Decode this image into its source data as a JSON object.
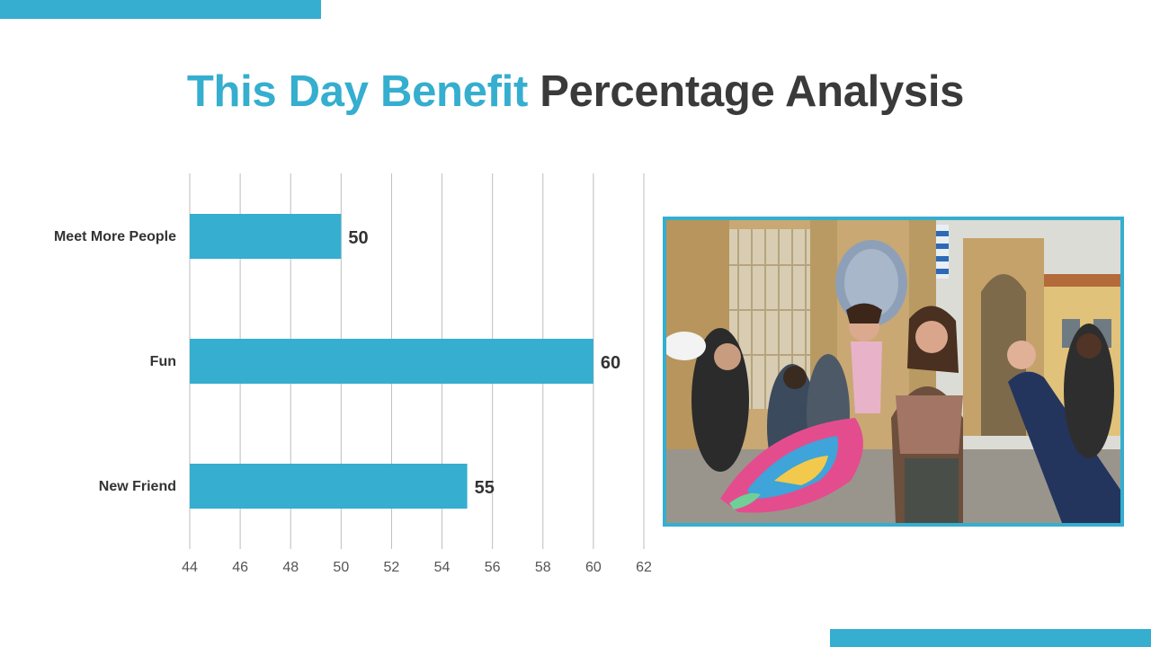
{
  "title": {
    "highlight": "This Day Benefit",
    "rest": "Percentage Analysis"
  },
  "colors": {
    "accent": "#35AECF",
    "title_dark": "#3a3a3a"
  },
  "chart_data": {
    "type": "bar",
    "orientation": "horizontal",
    "categories": [
      "Meet More People",
      "Fun",
      "New Friend"
    ],
    "values": [
      50,
      60,
      55
    ],
    "xlim": [
      44,
      62
    ],
    "xticks": [
      44,
      46,
      48,
      50,
      52,
      54,
      56,
      58,
      60,
      62
    ],
    "grid": true,
    "data_labels": true,
    "legend": false,
    "title": "",
    "xlabel": "",
    "ylabel": ""
  },
  "photo": {
    "subject": "photo of a crowd having a pillow fight in a city square"
  }
}
